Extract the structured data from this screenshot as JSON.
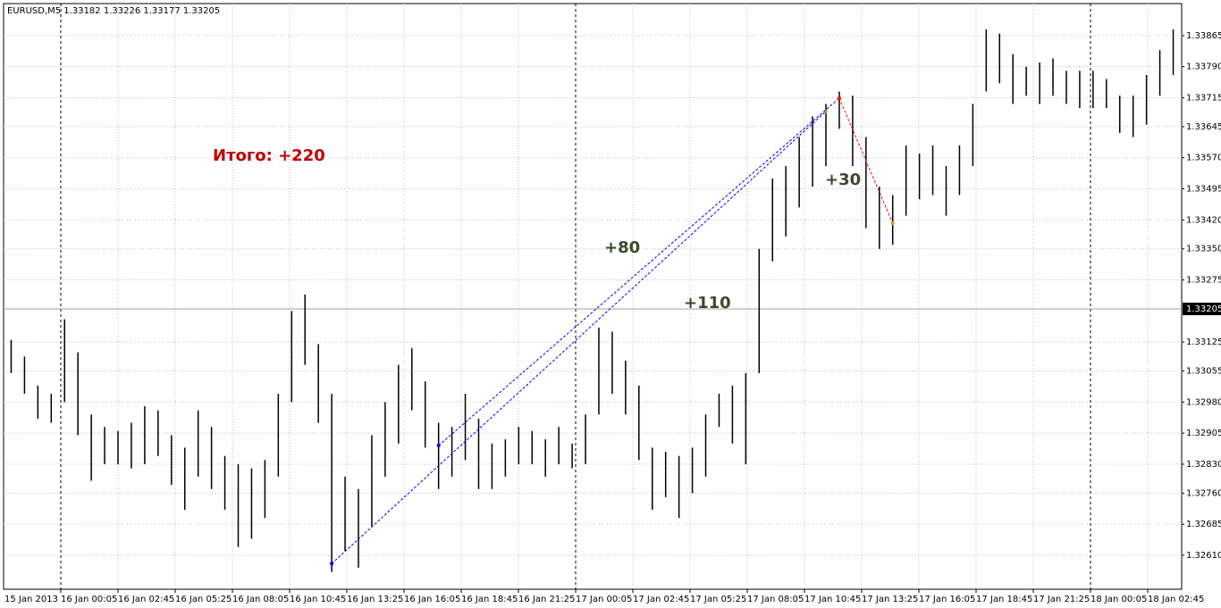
{
  "chart_data": {
    "type": "hl-bars",
    "title": "EURUSD,M5  1.33182 1.33226 1.33177 1.33205",
    "color": "#000000",
    "grid": true,
    "ylim": [
      1.32528,
      1.33951
    ],
    "yticks": [
      {
        "value": 1.33865,
        "label": "1.33865"
      },
      {
        "value": 1.3379,
        "label": "1.33790"
      },
      {
        "value": 1.33715,
        "label": "1.33715"
      },
      {
        "value": 1.33645,
        "label": "1.33645"
      },
      {
        "value": 1.3357,
        "label": "1.33570"
      },
      {
        "value": 1.33495,
        "label": "1.33495"
      },
      {
        "value": 1.3342,
        "label": "1.33420"
      },
      {
        "value": 1.3335,
        "label": "1.33350"
      },
      {
        "value": 1.33275,
        "label": "1.33275"
      },
      {
        "value": 1.33125,
        "label": "1.33125"
      },
      {
        "value": 1.33055,
        "label": "1.33055"
      },
      {
        "value": 1.3298,
        "label": "1.32980"
      },
      {
        "value": 1.32905,
        "label": "1.32905"
      },
      {
        "value": 1.3283,
        "label": "1.32830"
      },
      {
        "value": 1.3276,
        "label": "1.32760"
      },
      {
        "value": 1.32685,
        "label": "1.32685"
      },
      {
        "value": 1.3261,
        "label": "1.32610"
      }
    ],
    "current_price": {
      "value": 1.33205,
      "label": "1.33205"
    },
    "x_labels": [
      "15 Jan 2013",
      "16 Jan 00:05",
      "16 Jan 02:45",
      "16 Jan 05:25",
      "16 Jan 08:05",
      "16 Jan 10:45",
      "16 Jan 13:25",
      "16 Jan 16:05",
      "16 Jan 18:45",
      "16 Jan 21:25",
      "17 Jan 00:05",
      "17 Jan 02:45",
      "17 Jan 05:25",
      "17 Jan 08:05",
      "17 Jan 10:45",
      "17 Jan 13:25",
      "17 Jan 16:05",
      "17 Jan 18:45",
      "17 Jan 21:25",
      "18 Jan 00:05",
      "18 Jan 02:45"
    ],
    "high": [
      1.3313,
      1.3309,
      1.3302,
      1.33,
      1.3318,
      1.331,
      1.3295,
      1.3292,
      1.3291,
      1.3293,
      1.3297,
      1.3296,
      1.329,
      1.3287,
      1.3296,
      1.3292,
      1.3285,
      1.3283,
      1.3282,
      1.3284,
      1.33,
      1.332,
      1.3324,
      1.3312,
      1.33,
      1.328,
      1.3277,
      1.329,
      1.3298,
      1.3307,
      1.3311,
      1.3303,
      1.3293,
      1.3292,
      1.33,
      1.3294,
      1.3288,
      1.3289,
      1.3292,
      1.3291,
      1.3289,
      1.3292,
      1.3288,
      1.3295,
      1.3316,
      1.3315,
      1.3308,
      1.3302,
      1.3287,
      1.3286,
      1.3285,
      1.3287,
      1.3295,
      1.33,
      1.3302,
      1.3305,
      1.3335,
      1.3352,
      1.3355,
      1.3362,
      1.3367,
      1.337,
      1.3373,
      1.3372,
      1.3362,
      1.335,
      1.3348,
      1.336,
      1.3358,
      1.336,
      1.3355,
      1.336,
      1.337,
      1.3388,
      1.3387,
      1.3382,
      1.3379,
      1.338,
      1.3381,
      1.3378,
      1.3378,
      1.3378,
      1.3376,
      1.3372,
      1.3372,
      1.3377,
      1.3383,
      1.3388
    ],
    "low": [
      1.3305,
      1.33,
      1.3294,
      1.3293,
      1.3298,
      1.329,
      1.3279,
      1.3283,
      1.3283,
      1.3282,
      1.3283,
      1.3285,
      1.3278,
      1.3272,
      1.328,
      1.3277,
      1.3272,
      1.3263,
      1.3265,
      1.327,
      1.328,
      1.3298,
      1.3307,
      1.3293,
      1.3257,
      1.3262,
      1.3258,
      1.3268,
      1.328,
      1.3288,
      1.3296,
      1.3287,
      1.3277,
      1.328,
      1.3284,
      1.3277,
      1.3277,
      1.328,
      1.3283,
      1.3283,
      1.328,
      1.3283,
      1.3282,
      1.3283,
      1.3295,
      1.33,
      1.3295,
      1.3284,
      1.3272,
      1.3275,
      1.327,
      1.3276,
      1.328,
      1.3292,
      1.3288,
      1.3283,
      1.3305,
      1.3332,
      1.3338,
      1.3345,
      1.335,
      1.3355,
      1.3364,
      1.3355,
      1.334,
      1.3335,
      1.3336,
      1.3343,
      1.3347,
      1.3348,
      1.3343,
      1.3348,
      1.3355,
      1.3373,
      1.3375,
      1.337,
      1.3372,
      1.337,
      1.3372,
      1.337,
      1.3369,
      1.3369,
      1.3369,
      1.3363,
      1.3362,
      1.3365,
      1.3372,
      1.3377
    ],
    "trades": [
      {
        "entry_bar": 24,
        "entry_price": 1.3259,
        "exit_bar": 61,
        "exit_price": 1.33682,
        "color": "#0000ff"
      },
      {
        "entry_bar": 32,
        "entry_price": 1.32875,
        "exit_bar": 62,
        "exit_price": 1.33714,
        "color": "#0000ff"
      },
      {
        "entry_bar": 62,
        "entry_price": 1.33714,
        "exit_bar": 66,
        "exit_price": 1.33412,
        "color": "#ff0000"
      }
    ],
    "annotations": [
      {
        "text": "Итого: +220",
        "color": "#c00000"
      },
      {
        "text": "+80",
        "color": "#3a4a2a"
      },
      {
        "text": "+110",
        "color": "#3a4a2a"
      },
      {
        "text": "+30",
        "color": "#3a4a2a"
      }
    ]
  }
}
